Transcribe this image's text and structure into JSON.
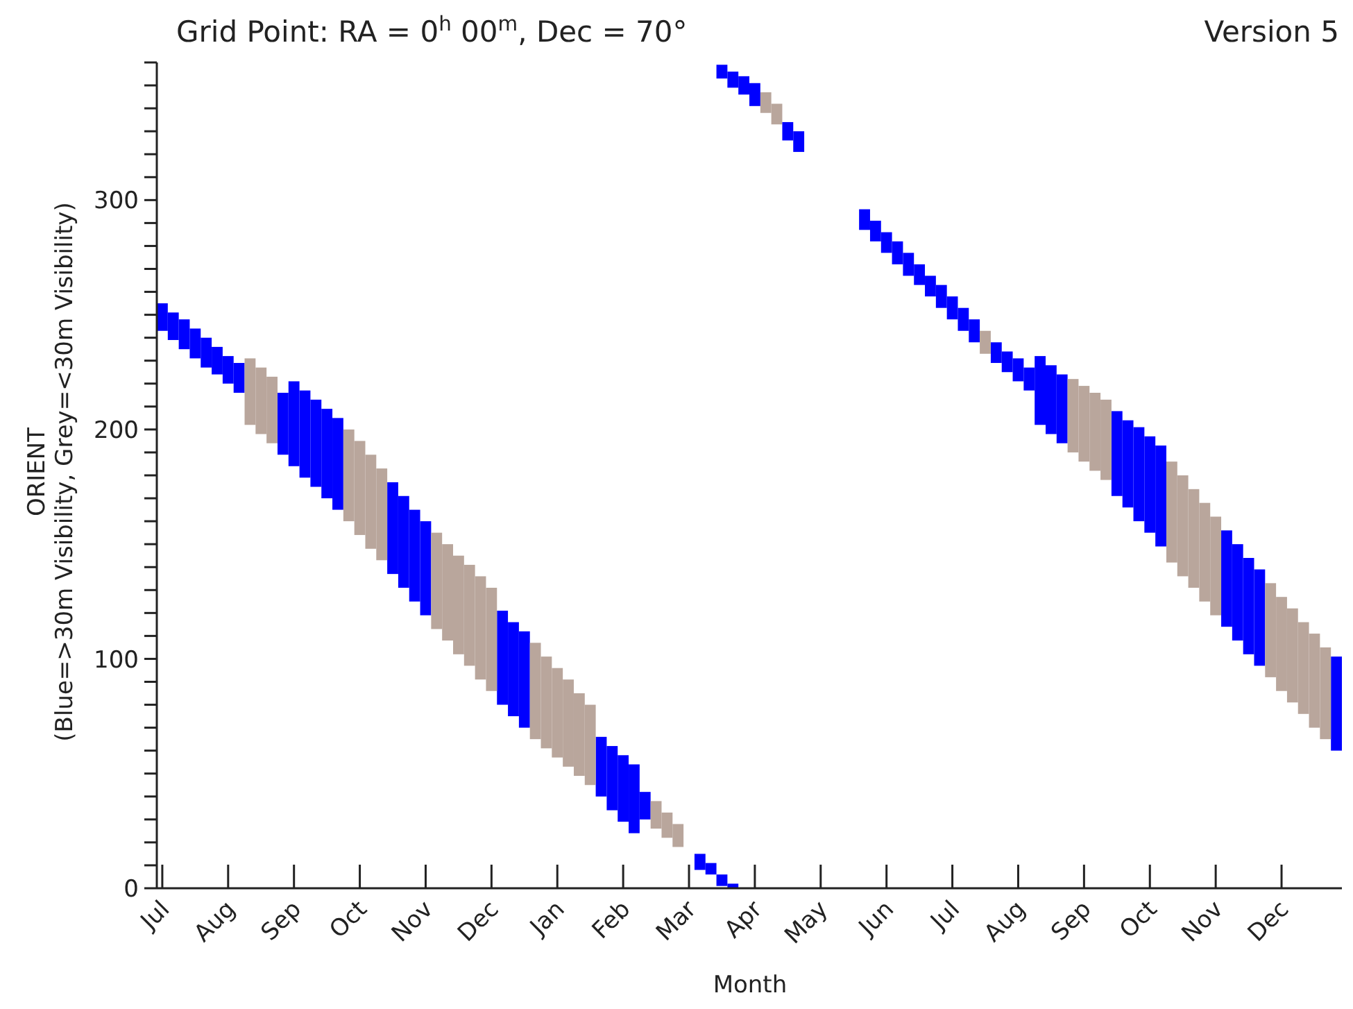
{
  "chart_data": {
    "type": "bar",
    "title": "Grid Point: RA = 0$^{h}$ 00$^{m}$, Dec = 70°",
    "annotations": [
      "Version 5"
    ],
    "xlabel": "Month",
    "ylabel": "ORIENT\n(Blue=>30m Visibility, Grey=<30m Visibility)",
    "categories": [
      "Jul",
      null,
      null,
      null,
      null,
      null,
      "Aug",
      null,
      null,
      null,
      null,
      null,
      "Sep",
      null,
      null,
      null,
      null,
      null,
      "Oct",
      null,
      null,
      null,
      null,
      null,
      "Nov",
      null,
      null,
      null,
      null,
      null,
      "Dec",
      null,
      null,
      null,
      null,
      null,
      "Jan",
      null,
      null,
      null,
      null,
      null,
      "Feb",
      null,
      null,
      null,
      null,
      null,
      "Mar",
      null,
      null,
      null,
      null,
      null,
      "Apr",
      null,
      null,
      null,
      null,
      null,
      "May",
      null,
      null,
      null,
      null,
      null,
      "Jun",
      null,
      null,
      null,
      null,
      null,
      "Jul",
      null,
      null,
      null,
      null,
      null,
      "Aug",
      null,
      null,
      null,
      null,
      null,
      "Sep",
      null,
      null,
      null,
      null,
      null,
      "Oct",
      null,
      null,
      null,
      null,
      null,
      "Nov",
      null,
      null,
      null,
      null,
      null,
      "Dec",
      null,
      null,
      null,
      null,
      null
    ],
    "ylim": [
      0,
      360
    ],
    "yticks": [
      0,
      {
        "value": 10,
        "label": null
      },
      {
        "value": 20,
        "label": null
      },
      {
        "value": 30,
        "label": null
      },
      {
        "value": 40,
        "label": null
      },
      {
        "value": 50,
        "label": null
      },
      {
        "value": 60,
        "label": null
      },
      {
        "value": 70,
        "label": null
      },
      {
        "value": 80,
        "label": null
      },
      {
        "value": 90,
        "label": null
      },
      100,
      {
        "value": 110,
        "label": null
      },
      {
        "value": 120,
        "label": null
      },
      {
        "value": 130,
        "label": null
      },
      {
        "value": 140,
        "label": null
      },
      {
        "value": 150,
        "label": null
      },
      {
        "value": 160,
        "label": null
      },
      {
        "value": 170,
        "label": null
      },
      {
        "value": 180,
        "label": null
      },
      {
        "value": 190,
        "label": null
      },
      200,
      {
        "value": 210,
        "label": null
      },
      {
        "value": 220,
        "label": null
      },
      {
        "value": 230,
        "label": null
      },
      {
        "value": 240,
        "label": null
      },
      {
        "value": 250,
        "label": null
      },
      {
        "value": 260,
        "label": null
      },
      {
        "value": 270,
        "label": null
      },
      {
        "value": 280,
        "label": null
      },
      {
        "value": 290,
        "label": null
      },
      300,
      {
        "value": 310,
        "label": null
      },
      {
        "value": 320,
        "label": null
      },
      {
        "value": 330,
        "label": null
      },
      {
        "value": 340,
        "label": null
      },
      {
        "value": 350,
        "label": null
      },
      {
        "value": 360,
        "label": null
      }
    ],
    "series": [
      {
        "color": "#0000ff",
        "base": [
          243,
          239,
          235,
          231,
          227,
          224,
          220,
          216,
          null,
          null,
          null,
          189,
          184,
          179,
          175,
          170,
          165,
          null,
          null,
          null,
          null,
          137,
          131,
          125,
          119,
          null,
          null,
          null,
          null,
          null,
          null,
          80,
          75,
          70,
          null,
          null,
          null,
          null,
          null,
          null,
          40,
          34,
          29,
          24,
          30,
          null,
          null,
          null,
          null,
          8,
          6,
          1,
          0,
          null,
          null,
          null,
          null,
          null,
          null,
          null,
          null,
          null,
          null,
          null,
          287,
          282,
          277,
          272,
          267,
          263,
          258,
          253,
          248,
          243,
          238,
          null,
          229,
          225,
          221,
          217,
          202,
          198,
          194,
          null,
          null,
          null,
          null,
          171,
          166,
          160,
          155,
          149,
          null,
          null,
          null,
          null,
          null,
          114,
          108,
          102,
          97,
          null,
          null,
          null,
          null,
          null,
          null,
          60
        ],
        "values": [
          12,
          12,
          13,
          13,
          13,
          12,
          12,
          13,
          null,
          null,
          null,
          27,
          37,
          38,
          38,
          39,
          40,
          null,
          null,
          null,
          null,
          40,
          40,
          40,
          41,
          null,
          null,
          null,
          null,
          null,
          null,
          41,
          41,
          42,
          null,
          null,
          null,
          null,
          null,
          null,
          26,
          28,
          29,
          30,
          12,
          null,
          null,
          null,
          null,
          7,
          5,
          5,
          2,
          null,
          null,
          null,
          null,
          null,
          null,
          null,
          null,
          null,
          null,
          null,
          9,
          9,
          9,
          10,
          10,
          9,
          9,
          10,
          10,
          10,
          10,
          null,
          9,
          9,
          10,
          10,
          30,
          30,
          30,
          null,
          null,
          null,
          null,
          37,
          38,
          41,
          42,
          44,
          null,
          null,
          null,
          null,
          null,
          42,
          42,
          42,
          42,
          null,
          null,
          null,
          null,
          null,
          null,
          41
        ]
      },
      {
        "color": "#b9a69c",
        "base": [
          null,
          null,
          null,
          null,
          null,
          null,
          null,
          null,
          202,
          198,
          194,
          null,
          null,
          null,
          null,
          null,
          null,
          160,
          154,
          148,
          143,
          null,
          null,
          null,
          null,
          113,
          108,
          102,
          97,
          91,
          86,
          null,
          null,
          null,
          65,
          61,
          57,
          53,
          49,
          45,
          null,
          null,
          null,
          null,
          null,
          26,
          22,
          18,
          null,
          null,
          null,
          null,
          null,
          null,
          null,
          338,
          333,
          null,
          null,
          null,
          null,
          null,
          null,
          null,
          null,
          null,
          null,
          null,
          null,
          null,
          null,
          null,
          null,
          null,
          null,
          233,
          null,
          null,
          null,
          null,
          null,
          null,
          null,
          190,
          186,
          182,
          178,
          null,
          null,
          null,
          null,
          null,
          142,
          136,
          131,
          125,
          119,
          null,
          null,
          null,
          null,
          92,
          86,
          81,
          76,
          70,
          65,
          null
        ],
        "values": [
          null,
          null,
          null,
          null,
          null,
          null,
          null,
          null,
          29,
          29,
          29,
          null,
          null,
          null,
          null,
          null,
          null,
          40,
          41,
          41,
          40,
          null,
          null,
          null,
          null,
          42,
          42,
          43,
          44,
          45,
          45,
          null,
          null,
          null,
          42,
          40,
          39,
          38,
          36,
          35,
          null,
          null,
          null,
          null,
          null,
          12,
          11,
          10,
          null,
          null,
          null,
          null,
          null,
          null,
          null,
          9,
          9,
          null,
          null,
          null,
          null,
          null,
          null,
          null,
          null,
          null,
          null,
          null,
          null,
          null,
          null,
          null,
          null,
          null,
          null,
          10,
          null,
          null,
          null,
          null,
          null,
          null,
          null,
          32,
          33,
          34,
          35,
          null,
          null,
          null,
          null,
          null,
          44,
          44,
          43,
          43,
          43,
          null,
          null,
          null,
          null,
          41,
          41,
          41,
          40,
          41,
          40,
          null
        ]
      },
      {
        "color": "#0000ff",
        "base": [
          null,
          null,
          null,
          null,
          null,
          null,
          null,
          null,
          null,
          null,
          null,
          null,
          null,
          null,
          null,
          null,
          null,
          null,
          null,
          null,
          null,
          null,
          null,
          null,
          null,
          null,
          null,
          null,
          null,
          null,
          null,
          null,
          null,
          null,
          null,
          null,
          null,
          null,
          null,
          null,
          null,
          null,
          null,
          null,
          null,
          null,
          null,
          null,
          null,
          null,
          null,
          353,
          349,
          346,
          341,
          null,
          null,
          326,
          321,
          null,
          null,
          null,
          null,
          null,
          null,
          null,
          null,
          null,
          null,
          null,
          null,
          null,
          null,
          null,
          null,
          null,
          null,
          null,
          null,
          null,
          null,
          null,
          null,
          null,
          null,
          null,
          null,
          null,
          null,
          null,
          null,
          null,
          null,
          null,
          null,
          null,
          null,
          null,
          null,
          null,
          null,
          null,
          null,
          null,
          null,
          null,
          null,
          null
        ],
        "values": [
          null,
          null,
          null,
          null,
          null,
          null,
          null,
          null,
          null,
          null,
          null,
          null,
          null,
          null,
          null,
          null,
          null,
          null,
          null,
          null,
          null,
          null,
          null,
          null,
          null,
          null,
          null,
          null,
          null,
          null,
          null,
          null,
          null,
          null,
          null,
          null,
          null,
          null,
          null,
          null,
          null,
          null,
          null,
          null,
          null,
          null,
          null,
          null,
          null,
          null,
          null,
          6,
          7,
          8,
          10,
          null,
          null,
          8,
          9,
          null,
          null,
          null,
          null,
          null,
          null,
          null,
          null,
          null,
          null,
          null,
          null,
          null,
          null,
          null,
          null,
          null,
          null,
          null,
          null,
          null,
          null,
          null,
          null,
          null,
          null,
          null,
          null,
          null,
          null,
          null,
          null,
          null,
          null,
          null,
          null,
          null,
          null,
          null,
          null,
          null,
          null,
          null,
          null,
          null,
          null,
          null,
          null,
          null
        ]
      }
    ]
  }
}
